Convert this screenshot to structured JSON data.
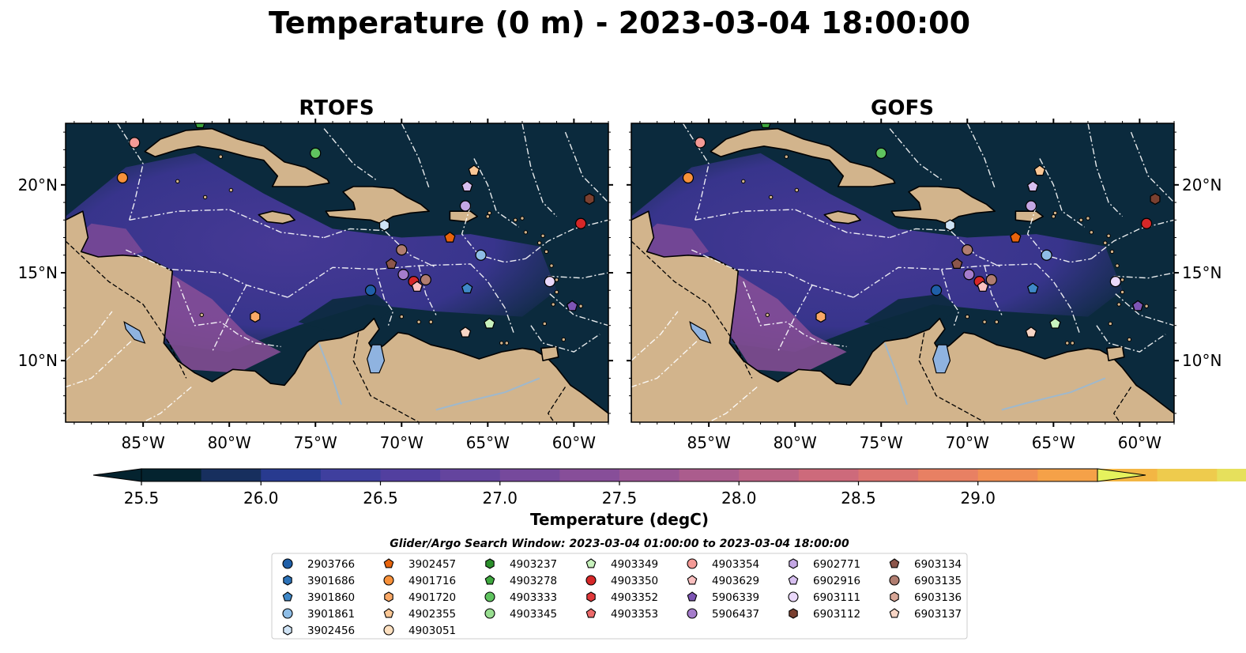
{
  "figure": {
    "title": "Temperature (0 m) - 2023-03-04 18:00:00"
  },
  "panels": [
    {
      "id": "rtofs",
      "title": "RTOFS"
    },
    {
      "id": "gofs",
      "title": "GOFS"
    }
  ],
  "map": {
    "lon_range": [
      -89.5,
      -58.0
    ],
    "lat_range": [
      6.5,
      23.5
    ],
    "lon_ticks": [
      {
        "value": -85,
        "label": "85°W"
      },
      {
        "value": -80,
        "label": "80°W"
      },
      {
        "value": -75,
        "label": "75°W"
      },
      {
        "value": -70,
        "label": "70°W"
      },
      {
        "value": -65,
        "label": "65°W"
      },
      {
        "value": -60,
        "label": "60°W"
      }
    ],
    "lat_ticks": [
      {
        "value": 20,
        "label": "20°N"
      },
      {
        "value": 15,
        "label": "15°N"
      },
      {
        "value": 10,
        "label": "10°N"
      }
    ],
    "colors": {
      "land": "#d2b48c",
      "ocean_cold": "#0b2a3d",
      "ocean_mid": "#4a3a9a",
      "lake": "#8fb3e0",
      "eez_lines": "#ffffff"
    }
  },
  "colorbar": {
    "label": "Temperature (degC)",
    "min": 25.5,
    "max": 29.5,
    "step": 0.25,
    "tick_values": [
      25.5,
      26.0,
      26.5,
      27.0,
      27.5,
      28.0,
      28.5,
      29.0
    ],
    "tick_labels": [
      "25.5",
      "26.0",
      "26.5",
      "27.0",
      "27.5",
      "28.0",
      "28.5",
      "29.0"
    ],
    "colors": [
      "#04232f",
      "#172f5e",
      "#283a8f",
      "#3f3f9e",
      "#523f9f",
      "#64449e",
      "#76499c",
      "#874e99",
      "#9a5594",
      "#ab5c8d",
      "#bc6385",
      "#cd6a7b",
      "#dc7470",
      "#e88063",
      "#f18f54",
      "#f5a148",
      "#f3b644",
      "#eecb4d",
      "#e6e05c"
    ],
    "extend_low": "#04232f",
    "extend_high": "#e5f25d"
  },
  "legend": {
    "title": "Glider/Argo Search Window: 2023-03-04 01:00:00 to 2023-03-04 18:00:00",
    "items": [
      {
        "label": "2903766",
        "marker": "circle",
        "color": "#1f5fa8"
      },
      {
        "label": "3901686",
        "marker": "hexagon",
        "color": "#2c72b8"
      },
      {
        "label": "3901860",
        "marker": "pentagon",
        "color": "#3f88c8"
      },
      {
        "label": "3901861",
        "marker": "circle",
        "color": "#8ebde6"
      },
      {
        "label": "3902456",
        "marker": "hexagon",
        "color": "#cfe3f5"
      },
      {
        "label": "3902457",
        "marker": "pentagon",
        "color": "#e8640c"
      },
      {
        "label": "4901716",
        "marker": "circle",
        "color": "#f8913a"
      },
      {
        "label": "4901720",
        "marker": "hexagon",
        "color": "#f9a866"
      },
      {
        "label": "4902355",
        "marker": "pentagon",
        "color": "#fbc795"
      },
      {
        "label": "4903051",
        "marker": "circle",
        "color": "#fde0c0"
      },
      {
        "label": "4903237",
        "marker": "hexagon",
        "color": "#2b8f2b"
      },
      {
        "label": "4903278",
        "marker": "pentagon",
        "color": "#3ea83e"
      },
      {
        "label": "4903333",
        "marker": "circle",
        "color": "#5fc35f"
      },
      {
        "label": "4903345",
        "marker": "circle",
        "color": "#98de90"
      },
      {
        "label": "4903349",
        "marker": "pentagon",
        "color": "#c8f2bd"
      },
      {
        "label": "4903350",
        "marker": "circle",
        "color": "#d62728"
      },
      {
        "label": "4903352",
        "marker": "hexagon",
        "color": "#e0383a"
      },
      {
        "label": "4903353",
        "marker": "pentagon",
        "color": "#ec6a6a"
      },
      {
        "label": "4903354",
        "marker": "circle",
        "color": "#f49a96"
      },
      {
        "label": "4903629",
        "marker": "pentagon",
        "color": "#fbc0c0"
      },
      {
        "label": "5906339",
        "marker": "pentagon",
        "color": "#7d55b4"
      },
      {
        "label": "5906437",
        "marker": "circle",
        "color": "#a57ccb"
      },
      {
        "label": "6902771",
        "marker": "hexagon",
        "color": "#c4a7e4"
      },
      {
        "label": "6902916",
        "marker": "pentagon",
        "color": "#d7bff0"
      },
      {
        "label": "6903111",
        "marker": "circle",
        "color": "#ead8fa"
      },
      {
        "label": "6903112",
        "marker": "hexagon",
        "color": "#7a4030"
      },
      {
        "label": "6903134",
        "marker": "pentagon",
        "color": "#8c564b"
      },
      {
        "label": "6903135",
        "marker": "circle",
        "color": "#b07d70"
      },
      {
        "label": "6903136",
        "marker": "hexagon",
        "color": "#d7a697"
      },
      {
        "label": "6903137",
        "marker": "pentagon",
        "color": "#f7d5c5"
      }
    ]
  },
  "floats": [
    {
      "lon": -85.5,
      "lat": 22.4,
      "color": "#f49a96",
      "marker": "circle"
    },
    {
      "lon": -86.2,
      "lat": 20.4,
      "color": "#f8913a",
      "marker": "circle"
    },
    {
      "lon": -81.7,
      "lat": 23.5,
      "color": "#3ea83e",
      "marker": "pentagon"
    },
    {
      "lon": -75.0,
      "lat": 21.8,
      "color": "#5fc35f",
      "marker": "circle"
    },
    {
      "lon": -65.8,
      "lat": 20.8,
      "color": "#fbc795",
      "marker": "pentagon"
    },
    {
      "lon": -66.2,
      "lat": 19.9,
      "color": "#d7bff0",
      "marker": "pentagon"
    },
    {
      "lon": -66.3,
      "lat": 18.8,
      "color": "#c4a7e4",
      "marker": "circle"
    },
    {
      "lon": -59.1,
      "lat": 19.2,
      "color": "#7a4030",
      "marker": "hexagon"
    },
    {
      "lon": -59.6,
      "lat": 17.8,
      "color": "#d62728",
      "marker": "circle"
    },
    {
      "lon": -67.2,
      "lat": 17.0,
      "color": "#e8640c",
      "marker": "pentagon"
    },
    {
      "lon": -71.0,
      "lat": 17.7,
      "color": "#cfe3f5",
      "marker": "hexagon"
    },
    {
      "lon": -70.0,
      "lat": 16.3,
      "color": "#b07d70",
      "marker": "circle"
    },
    {
      "lon": -65.4,
      "lat": 16.0,
      "color": "#8ebde6",
      "marker": "circle"
    },
    {
      "lon": -70.6,
      "lat": 15.5,
      "color": "#8c564b",
      "marker": "pentagon"
    },
    {
      "lon": -69.9,
      "lat": 14.9,
      "color": "#a57ccb",
      "marker": "circle"
    },
    {
      "lon": -69.3,
      "lat": 14.5,
      "color": "#d62728",
      "marker": "circle"
    },
    {
      "lon": -68.6,
      "lat": 14.6,
      "color": "#b07d70",
      "marker": "circle"
    },
    {
      "lon": -69.1,
      "lat": 14.2,
      "color": "#fbc0c0",
      "marker": "pentagon"
    },
    {
      "lon": -71.8,
      "lat": 14.0,
      "color": "#1f5fa8",
      "marker": "circle"
    },
    {
      "lon": -66.2,
      "lat": 14.1,
      "color": "#3f88c8",
      "marker": "pentagon"
    },
    {
      "lon": -61.4,
      "lat": 14.5,
      "color": "#ead8fa",
      "marker": "circle"
    },
    {
      "lon": -60.1,
      "lat": 13.1,
      "color": "#7d55b4",
      "marker": "pentagon"
    },
    {
      "lon": -78.5,
      "lat": 12.5,
      "color": "#f9a866",
      "marker": "hexagon"
    },
    {
      "lon": -64.9,
      "lat": 12.1,
      "color": "#c8f2bd",
      "marker": "pentagon"
    },
    {
      "lon": -66.3,
      "lat": 11.6,
      "color": "#f7d5c5",
      "marker": "pentagon"
    }
  ]
}
